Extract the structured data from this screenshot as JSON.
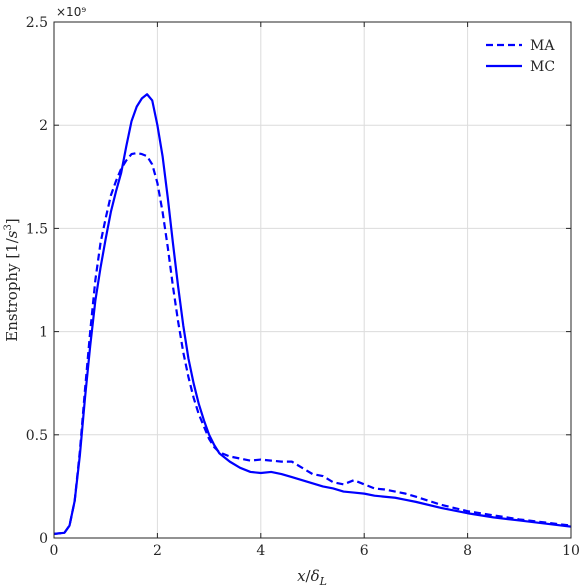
{
  "chart_data": {
    "type": "line",
    "xlabel": "x/δL",
    "ylabel": "Enstrophy [1/s3]",
    "xlim": [
      0,
      10
    ],
    "ylim": [
      0,
      2.5
    ],
    "y_exponent_label": "×10⁹",
    "y_scale_factor": 1000000000.0,
    "x_ticks": [
      "0",
      "2",
      "4",
      "6",
      "8",
      "10"
    ],
    "y_ticks": [
      "0",
      "0.5",
      "1",
      "1.5",
      "2",
      "2.5"
    ],
    "grid": true,
    "legend_position": "top-right",
    "series": [
      {
        "name": "MA",
        "style": "dashed",
        "color": "#0000ff",
        "x": [
          0,
          0.2,
          0.3,
          0.4,
          0.5,
          0.6,
          0.7,
          0.8,
          0.9,
          1.0,
          1.1,
          1.2,
          1.3,
          1.4,
          1.5,
          1.6,
          1.7,
          1.8,
          1.9,
          2.0,
          2.1,
          2.2,
          2.3,
          2.4,
          2.5,
          2.6,
          2.7,
          2.8,
          2.9,
          3.0,
          3.1,
          3.2,
          3.4,
          3.6,
          3.8,
          4.0,
          4.2,
          4.4,
          4.6,
          4.8,
          5.0,
          5.2,
          5.4,
          5.6,
          5.8,
          6.0,
          6.2,
          6.4,
          6.6,
          6.8,
          7.0,
          7.5,
          8.0,
          8.5,
          9.0,
          9.5,
          10.0
        ],
        "y": [
          0.02,
          0.025,
          0.06,
          0.18,
          0.42,
          0.72,
          1.0,
          1.25,
          1.43,
          1.55,
          1.66,
          1.73,
          1.79,
          1.83,
          1.86,
          1.865,
          1.86,
          1.85,
          1.81,
          1.72,
          1.58,
          1.41,
          1.22,
          1.05,
          0.9,
          0.78,
          0.68,
          0.6,
          0.54,
          0.48,
          0.44,
          0.415,
          0.395,
          0.385,
          0.375,
          0.38,
          0.375,
          0.37,
          0.37,
          0.34,
          0.31,
          0.3,
          0.27,
          0.26,
          0.28,
          0.26,
          0.24,
          0.235,
          0.225,
          0.215,
          0.2,
          0.16,
          0.13,
          0.11,
          0.09,
          0.075,
          0.06
        ]
      },
      {
        "name": "MC",
        "style": "solid",
        "color": "#0000ff",
        "x": [
          0,
          0.2,
          0.3,
          0.4,
          0.5,
          0.6,
          0.7,
          0.8,
          0.9,
          1.0,
          1.1,
          1.2,
          1.3,
          1.4,
          1.5,
          1.6,
          1.7,
          1.8,
          1.9,
          2.0,
          2.1,
          2.2,
          2.3,
          2.4,
          2.5,
          2.6,
          2.7,
          2.8,
          2.9,
          3.0,
          3.1,
          3.2,
          3.4,
          3.6,
          3.8,
          4.0,
          4.2,
          4.4,
          4.6,
          4.8,
          5.0,
          5.2,
          5.4,
          5.6,
          5.8,
          6.0,
          6.2,
          6.4,
          6.6,
          6.8,
          7.0,
          7.5,
          8.0,
          8.5,
          9.0,
          9.5,
          10.0
        ],
        "y": [
          0.02,
          0.025,
          0.06,
          0.18,
          0.4,
          0.68,
          0.93,
          1.15,
          1.31,
          1.45,
          1.58,
          1.68,
          1.77,
          1.9,
          2.02,
          2.09,
          2.13,
          2.15,
          2.12,
          2.0,
          1.85,
          1.65,
          1.43,
          1.22,
          1.03,
          0.87,
          0.75,
          0.65,
          0.57,
          0.5,
          0.45,
          0.41,
          0.37,
          0.34,
          0.32,
          0.315,
          0.32,
          0.31,
          0.295,
          0.28,
          0.265,
          0.25,
          0.24,
          0.225,
          0.22,
          0.215,
          0.205,
          0.2,
          0.195,
          0.185,
          0.175,
          0.145,
          0.12,
          0.1,
          0.085,
          0.07,
          0.055
        ]
      }
    ]
  }
}
